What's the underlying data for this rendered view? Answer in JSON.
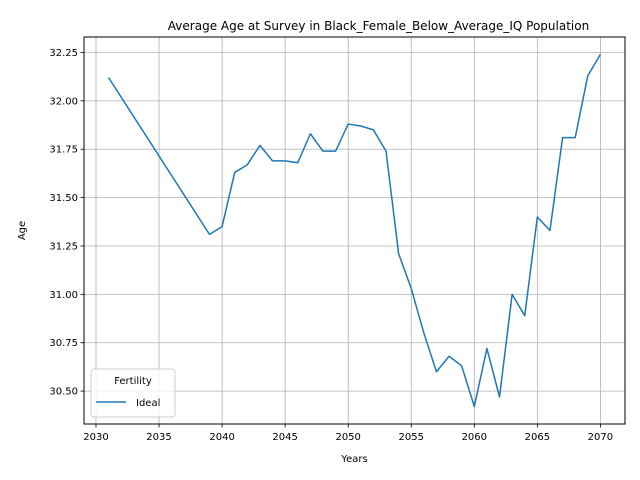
{
  "chart_data": {
    "type": "line",
    "title": "Average Age at Survey in Black_Female_Below_Average_IQ Population",
    "xlabel": "Years",
    "ylabel": "Age",
    "xlim": [
      2029.05,
      2071.95
    ],
    "ylim": [
      30.33,
      32.33
    ],
    "x_ticks": [
      2030,
      2035,
      2040,
      2045,
      2050,
      2055,
      2060,
      2065,
      2070
    ],
    "y_ticks": [
      30.5,
      30.75,
      31.0,
      31.25,
      31.5,
      31.75,
      32.0,
      32.25
    ],
    "x_tick_labels": [
      "2030",
      "2035",
      "2040",
      "2045",
      "2050",
      "2055",
      "2060",
      "2065",
      "2070"
    ],
    "y_tick_labels": [
      "30.50",
      "30.75",
      "31.00",
      "31.25",
      "31.50",
      "31.75",
      "32.00",
      "32.25"
    ],
    "grid": true,
    "legend": {
      "title": "Fertility",
      "placement": "lower-left"
    },
    "series": [
      {
        "name": "Ideal",
        "color": "#1f77b4",
        "x": [
          2031,
          2039,
          2040,
          2041,
          2042,
          2043,
          2044,
          2045,
          2046,
          2047,
          2048,
          2049,
          2050,
          2051,
          2052,
          2053,
          2054,
          2055,
          2056,
          2057,
          2058,
          2059,
          2060,
          2061,
          2062,
          2063,
          2064,
          2065,
          2066,
          2067,
          2068,
          2069,
          2070
        ],
        "values": [
          32.12,
          31.31,
          31.35,
          31.63,
          31.67,
          31.77,
          31.69,
          31.69,
          31.68,
          31.83,
          31.74,
          31.74,
          31.88,
          31.87,
          31.85,
          31.74,
          31.21,
          31.03,
          30.8,
          30.6,
          30.68,
          30.63,
          30.42,
          30.72,
          30.47,
          31.0,
          30.89,
          31.4,
          31.33,
          31.81,
          31.81,
          32.13,
          32.24
        ]
      }
    ]
  }
}
